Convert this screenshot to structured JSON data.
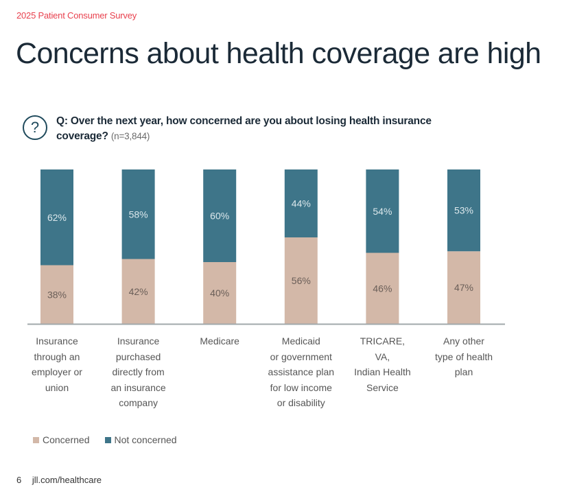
{
  "header": {
    "kicker": "2025 Patient Consumer Survey",
    "title": "Concerns about health coverage are high"
  },
  "question": {
    "icon": "question-mark-circle-icon",
    "text": "Q: Over the next year, how concerned are you about losing health insurance coverage?",
    "sample": "(n=3,844)"
  },
  "colors": {
    "concerned": "#d3b8a8",
    "not_concerned": "#3e7589",
    "axis": "#a0a8ab",
    "label_on_dark": "#dce8ec",
    "label_on_light": "#6a5e58"
  },
  "chart_data": {
    "type": "bar",
    "stacked": true,
    "title": "",
    "xlabel": "",
    "ylabel": "",
    "ylim": [
      0,
      100
    ],
    "categories": [
      "Insurance through an employer or union",
      "Insurance purchased directly from an insurance company",
      "Medicare",
      "Medicaid or government assistance plan for low income or disability",
      "TRICARE, VA, Indian Health Service",
      "Any other type of health plan"
    ],
    "category_lines": [
      [
        "Insurance",
        "through an",
        "employer or",
        "union"
      ],
      [
        "Insurance",
        "purchased",
        "directly from",
        "an insurance",
        "company"
      ],
      [
        "Medicare"
      ],
      [
        "Medicaid",
        "or government",
        "assistance plan",
        "for low income",
        "or disability"
      ],
      [
        "TRICARE,",
        "VA,",
        "Indian Health",
        "Service"
      ],
      [
        "Any other",
        "type of health",
        "plan"
      ]
    ],
    "series": [
      {
        "name": "Concerned",
        "values": [
          38,
          42,
          40,
          56,
          46,
          47
        ],
        "labels": [
          "38%",
          "42%",
          "40%",
          "56%",
          "46%",
          "47%"
        ]
      },
      {
        "name": "Not concerned",
        "values": [
          62,
          58,
          60,
          44,
          54,
          53
        ],
        "labels": [
          "62%",
          "58%",
          "60%",
          "44%",
          "54%",
          "53%"
        ]
      }
    ],
    "legend": {
      "position": "bottom-left",
      "entries": [
        "Concerned",
        "Not concerned"
      ]
    },
    "grid": false
  },
  "footer": {
    "page_number": "6",
    "url": "jll.com/healthcare"
  }
}
